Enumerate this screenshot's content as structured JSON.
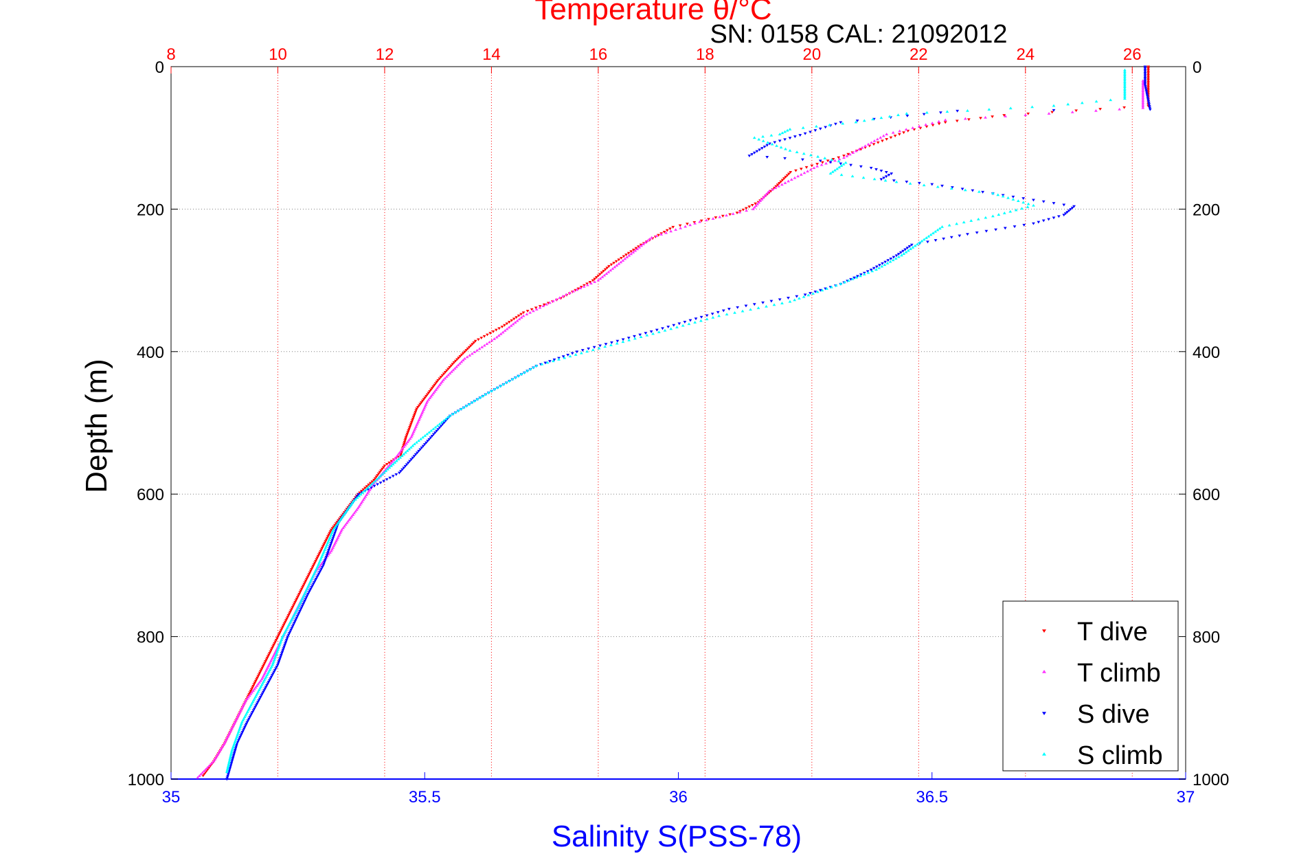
{
  "colors": {
    "temperature_axis": "#ff0000",
    "salinity_axis": "#0000ff",
    "depth_axis": "#000000",
    "t_dive": "#ff0000",
    "t_climb": "#ff33ff",
    "s_dive": "#0000ff",
    "s_climb": "#00ffff",
    "grid": "#808080"
  },
  "chart_data": {
    "type": "scatter",
    "title": "Temperature θ/°C",
    "subtitle": "SN: 0158  CAL: 21092012",
    "xlabel": "Salinity S(PSS-78)",
    "ylabel": "Depth (m)",
    "temperature_axis": {
      "range": [
        8,
        27
      ],
      "ticks": [
        "8",
        "10",
        "12",
        "14",
        "16",
        "18",
        "20",
        "22",
        "24",
        "26"
      ]
    },
    "salinity_axis": {
      "range": [
        35,
        37
      ],
      "ticks": [
        "35",
        "35.5",
        "36",
        "36.5",
        "37"
      ]
    },
    "depth_axis": {
      "range": [
        0,
        1000
      ],
      "reversed": true,
      "ticks": [
        "0",
        "200",
        "400",
        "600",
        "800",
        "1000"
      ]
    },
    "grid": true,
    "legend_placement": "bottom-right",
    "series": [
      {
        "name": "T dive",
        "axis": "temperature",
        "marker": "triangle-down",
        "points": [
          [
            26.3,
            0
          ],
          [
            26.3,
            55
          ],
          [
            23.6,
            68
          ],
          [
            22.5,
            78
          ],
          [
            21.8,
            90
          ],
          [
            20.6,
            125
          ],
          [
            19.6,
            148
          ],
          [
            19.3,
            170
          ],
          [
            19.0,
            190
          ],
          [
            18.6,
            205
          ],
          [
            17.4,
            225
          ],
          [
            16.8,
            250
          ],
          [
            16.2,
            280
          ],
          [
            15.9,
            300
          ],
          [
            15.3,
            325
          ],
          [
            14.6,
            345
          ],
          [
            14.2,
            365
          ],
          [
            13.7,
            385
          ],
          [
            13.5,
            400
          ],
          [
            13.3,
            415
          ],
          [
            13.0,
            440
          ],
          [
            12.8,
            460
          ],
          [
            12.6,
            480
          ],
          [
            12.4,
            520
          ],
          [
            12.3,
            545
          ],
          [
            12.0,
            560
          ],
          [
            11.8,
            580
          ],
          [
            11.5,
            600
          ],
          [
            11.2,
            630
          ],
          [
            11.0,
            650
          ],
          [
            10.8,
            680
          ],
          [
            10.6,
            710
          ],
          [
            10.4,
            740
          ],
          [
            10.2,
            770
          ],
          [
            10.0,
            800
          ],
          [
            9.8,
            830
          ],
          [
            9.6,
            860
          ],
          [
            9.4,
            890
          ],
          [
            9.2,
            920
          ],
          [
            9.0,
            950
          ],
          [
            8.8,
            975
          ],
          [
            8.6,
            995
          ]
        ]
      },
      {
        "name": "T climb",
        "axis": "temperature",
        "marker": "triangle-up",
        "points": [
          [
            26.2,
            20
          ],
          [
            26.2,
            58
          ],
          [
            24.0,
            68
          ],
          [
            22.5,
            75
          ],
          [
            21.4,
            95
          ],
          [
            20.6,
            128
          ],
          [
            20.1,
            140
          ],
          [
            19.2,
            175
          ],
          [
            18.9,
            200
          ],
          [
            17.9,
            218
          ],
          [
            17.0,
            240
          ],
          [
            16.5,
            270
          ],
          [
            16.0,
            300
          ],
          [
            15.4,
            320
          ],
          [
            14.6,
            350
          ],
          [
            14.1,
            380
          ],
          [
            13.5,
            410
          ],
          [
            13.1,
            440
          ],
          [
            12.8,
            470
          ],
          [
            12.5,
            520
          ],
          [
            12.2,
            550
          ],
          [
            11.8,
            585
          ],
          [
            11.5,
            620
          ],
          [
            11.2,
            650
          ],
          [
            11.0,
            680
          ],
          [
            10.7,
            710
          ],
          [
            10.5,
            740
          ],
          [
            10.3,
            770
          ],
          [
            10.1,
            800
          ],
          [
            9.9,
            830
          ],
          [
            9.7,
            860
          ],
          [
            9.4,
            890
          ],
          [
            9.2,
            920
          ],
          [
            9.0,
            950
          ],
          [
            8.8,
            975
          ],
          [
            8.5,
            998
          ]
        ]
      },
      {
        "name": "S dive",
        "axis": "salinity",
        "marker": "triangle-down",
        "points": [
          [
            36.92,
            0
          ],
          [
            36.92,
            25
          ],
          [
            36.93,
            60
          ],
          [
            36.55,
            62
          ],
          [
            36.32,
            78
          ],
          [
            36.24,
            96
          ],
          [
            36.18,
            108
          ],
          [
            36.14,
            125
          ],
          [
            36.28,
            132
          ],
          [
            36.38,
            142
          ],
          [
            36.42,
            150
          ],
          [
            36.4,
            158
          ],
          [
            36.5,
            165
          ],
          [
            36.62,
            178
          ],
          [
            36.78,
            196
          ],
          [
            36.76,
            208
          ],
          [
            36.7,
            220
          ],
          [
            36.57,
            235
          ],
          [
            36.46,
            250
          ],
          [
            36.43,
            265
          ],
          [
            36.38,
            285
          ],
          [
            36.32,
            305
          ],
          [
            36.25,
            320
          ],
          [
            36.1,
            340
          ],
          [
            35.98,
            365
          ],
          [
            35.88,
            385
          ],
          [
            35.8,
            400
          ],
          [
            35.72,
            420
          ],
          [
            35.62,
            460
          ],
          [
            35.55,
            490
          ],
          [
            35.5,
            530
          ],
          [
            35.45,
            570
          ],
          [
            35.37,
            600
          ],
          [
            35.33,
            640
          ],
          [
            35.3,
            700
          ],
          [
            35.27,
            740
          ],
          [
            35.23,
            800
          ],
          [
            35.21,
            840
          ],
          [
            35.18,
            880
          ],
          [
            35.15,
            920
          ],
          [
            35.13,
            950
          ],
          [
            35.12,
            975
          ],
          [
            35.11,
            1000
          ]
        ]
      },
      {
        "name": "S climb",
        "axis": "salinity",
        "marker": "triangle-up",
        "points": [
          [
            36.88,
            5
          ],
          [
            36.88,
            45
          ],
          [
            36.74,
            55
          ],
          [
            36.57,
            62
          ],
          [
            36.45,
            66
          ],
          [
            36.4,
            72
          ],
          [
            36.35,
            78
          ],
          [
            36.22,
            88
          ],
          [
            36.2,
            95
          ],
          [
            36.15,
            100
          ],
          [
            36.22,
            118
          ],
          [
            36.33,
            135
          ],
          [
            36.3,
            150
          ],
          [
            36.43,
            162
          ],
          [
            36.62,
            178
          ],
          [
            36.7,
            195
          ],
          [
            36.62,
            210
          ],
          [
            36.52,
            225
          ],
          [
            36.48,
            245
          ],
          [
            36.44,
            265
          ],
          [
            36.39,
            285
          ],
          [
            36.32,
            305
          ],
          [
            36.22,
            330
          ],
          [
            36.08,
            350
          ],
          [
            35.95,
            375
          ],
          [
            35.82,
            400
          ],
          [
            35.72,
            420
          ],
          [
            35.62,
            460
          ],
          [
            35.55,
            490
          ],
          [
            35.48,
            530
          ],
          [
            35.42,
            570
          ],
          [
            35.36,
            610
          ],
          [
            35.32,
            650
          ],
          [
            35.29,
            700
          ],
          [
            35.25,
            760
          ],
          [
            35.22,
            800
          ],
          [
            35.2,
            840
          ],
          [
            35.17,
            880
          ],
          [
            35.14,
            920
          ],
          [
            35.12,
            960
          ],
          [
            35.11,
            990
          ]
        ]
      }
    ]
  }
}
